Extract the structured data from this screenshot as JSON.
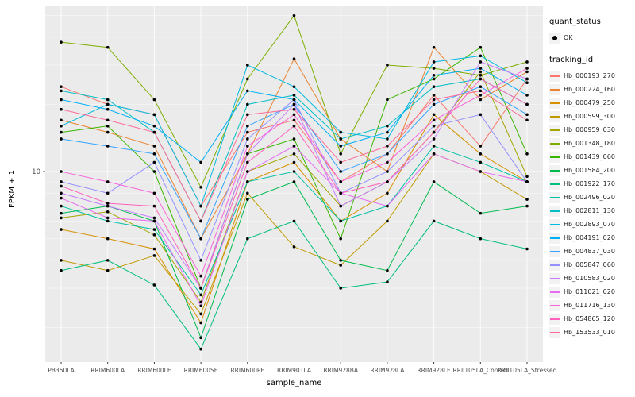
{
  "figure": {
    "panel_background": "#EBEBEB",
    "grid_major_color": "#FFFFFF",
    "grid_minor_color": "#F7F7F7",
    "tick_color": "#333333",
    "axis_text_color": "#4D4D4D",
    "point_color": "#000000"
  },
  "legend": {
    "quant_status_title": "quant_status",
    "ok_label": "OK",
    "tracking_title": "tracking_id"
  },
  "chart_data": {
    "type": "line",
    "title": "",
    "x_label": "sample_name",
    "y_label": "FPKM + 1",
    "y_scale": "log10",
    "ylim": [
      1.4,
      55
    ],
    "y_major_ticks": [
      10
    ],
    "y_tick_labels": [
      "10"
    ],
    "y_minor_ticks": [
      2,
      3,
      4,
      5,
      6,
      7,
      8,
      9,
      20,
      30,
      40,
      50
    ],
    "legend_position": "right",
    "point_shape": "filled-circle",
    "quant_status": "OK",
    "categories": [
      "PB350LA",
      "RRIM600LA",
      "RRIM600LE",
      "RRIM600SE",
      "RRIM600PE",
      "RRIM901LA",
      "RRIM928BA",
      "RRIM928LA",
      "RRIM928LE",
      "RRII105LA_Control",
      "RRII105LA_Stressed"
    ],
    "series": [
      {
        "name": "Hb_000193_270",
        "color": "#F8766D",
        "values": [
          24,
          20,
          18,
          7,
          15,
          17,
          9,
          12,
          22,
          13,
          26
        ]
      },
      {
        "name": "Hb_000224_160",
        "color": "#EA8331",
        "values": [
          17,
          15,
          13,
          5,
          12,
          32,
          14,
          10,
          36,
          21,
          28
        ]
      },
      {
        "name": "Hb_000479_250",
        "color": "#D89000",
        "values": [
          5.5,
          5,
          4.5,
          2.1,
          9,
          11,
          6,
          8,
          18,
          12,
          9
        ]
      },
      {
        "name": "Hb_000599_300",
        "color": "#C09B00",
        "values": [
          4,
          3.6,
          4.2,
          2.3,
          8,
          4.6,
          3.8,
          6,
          12,
          10,
          7.5
        ]
      },
      {
        "name": "Hb_000959_030",
        "color": "#A3A500",
        "values": [
          6.2,
          6.6,
          5.2,
          2.6,
          10,
          12,
          7,
          9,
          15,
          28,
          9.5
        ]
      },
      {
        "name": "Hb_001348_180",
        "color": "#7CAE00",
        "values": [
          38,
          36,
          21,
          8.5,
          26,
          50,
          12,
          30,
          29,
          27,
          31
        ]
      },
      {
        "name": "Hb_001439_060",
        "color": "#39B600",
        "values": [
          15,
          16,
          10,
          3,
          12,
          14,
          5,
          21,
          26,
          36,
          12
        ]
      },
      {
        "name": "Hb_001584_200",
        "color": "#00BB4E",
        "values": [
          6.5,
          7,
          6,
          1.8,
          7.5,
          9,
          4,
          3.6,
          9,
          6.5,
          7
        ]
      },
      {
        "name": "Hb_001922_170",
        "color": "#00BF7D",
        "values": [
          3.6,
          4,
          3.1,
          1.6,
          5,
          6,
          3,
          3.2,
          6,
          5,
          4.5
        ]
      },
      {
        "name": "Hb_002496_020",
        "color": "#00C1A3",
        "values": [
          7,
          6,
          5.5,
          2.8,
          9,
          10,
          6,
          7,
          13,
          11,
          9
        ]
      },
      {
        "name": "Hb_002811_130",
        "color": "#00BFC4",
        "values": [
          23,
          21,
          15,
          6,
          20,
          22,
          14,
          16,
          24,
          26,
          20
        ]
      },
      {
        "name": "Hb_002893_070",
        "color": "#00BAE0",
        "values": [
          16,
          20,
          18,
          7,
          30,
          24,
          15,
          14,
          31,
          33,
          25
        ]
      },
      {
        "name": "Hb_004191_020",
        "color": "#00B0F6",
        "values": [
          21,
          19,
          16,
          11,
          23,
          21,
          13,
          15,
          27,
          29,
          22
        ]
      },
      {
        "name": "Hb_004837_030",
        "color": "#35A2FF",
        "values": [
          14,
          13,
          12,
          5,
          16,
          20,
          10,
          12,
          20,
          24,
          18
        ]
      },
      {
        "name": "Hb_005847_060",
        "color": "#9590FF",
        "values": [
          9,
          8,
          11,
          4,
          14,
          21,
          8,
          10,
          16,
          18,
          9
        ]
      },
      {
        "name": "Hb_010583_020",
        "color": "#C77CFF",
        "values": [
          8,
          7,
          6.2,
          3,
          12,
          20,
          7,
          9,
          14,
          31,
          26
        ]
      },
      {
        "name": "Hb_011021_020",
        "color": "#E76BF3",
        "values": [
          7.6,
          6.2,
          6,
          2.5,
          10,
          13,
          8,
          7,
          12,
          10,
          9
        ]
      },
      {
        "name": "Hb_011716_130",
        "color": "#FA62DB",
        "values": [
          10,
          9,
          8,
          3.4,
          13,
          18,
          9,
          11,
          17,
          22,
          29
        ]
      },
      {
        "name": "Hb_054865_120",
        "color": "#FF62BC",
        "values": [
          8.6,
          7.2,
          7,
          3,
          11,
          16,
          8,
          9,
          15,
          26,
          20
        ]
      },
      {
        "name": "Hb_153533_010",
        "color": "#FF6A98",
        "values": [
          19,
          17,
          15,
          6,
          18,
          19,
          11,
          13,
          21,
          23,
          17
        ]
      }
    ]
  }
}
